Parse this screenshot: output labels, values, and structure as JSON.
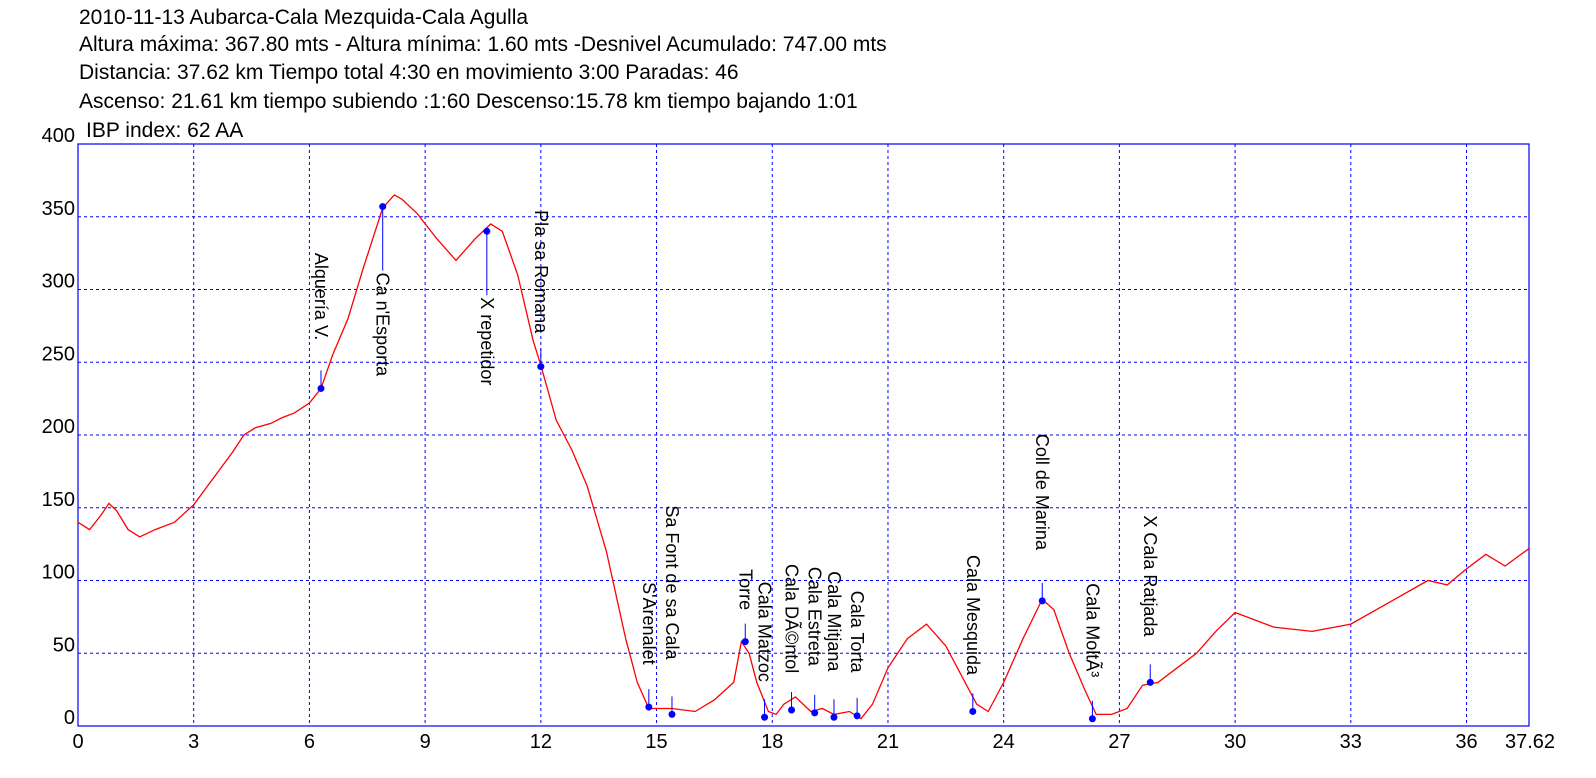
{
  "header": {
    "line1": "2010-11-13 Aubarca-Cala Mezquida-Cala Agulla",
    "line2": "Altura máxima: 367.80 mts - Altura mínima: 1.60 mts -Desnivel Acumulado: 747.00 mts",
    "line3": "Distancia: 37.62 km  Tiempo total 4:30  en movimiento 3:00 Paradas: 46",
    "line4": "Ascenso: 21.61 km  tiempo subiendo :1:60  Descenso:15.78 km tiempo bajando 1:01",
    "line5": "IBP index: 62 AA"
  },
  "chart_data": {
    "type": "line",
    "xlim": [
      0,
      37.62
    ],
    "ylim": [
      0,
      400
    ],
    "x_ticks": [
      0,
      3,
      6,
      9,
      12,
      15,
      18,
      21,
      24,
      27,
      30,
      33,
      36
    ],
    "x_end_label": "37.62",
    "y_ticks": [
      0,
      50,
      100,
      150,
      200,
      250,
      300,
      350,
      400
    ],
    "grid": true,
    "colors": {
      "line": "#ff0000",
      "frame": "#0000ff",
      "grid": "#0000ff",
      "marker": "#0000ff"
    },
    "series": [
      {
        "x": [
          0,
          0.3,
          0.6,
          0.8,
          1.0,
          1.3,
          1.6,
          2.0,
          2.5,
          3.0,
          3.5,
          4.0,
          4.3,
          4.6,
          5.0,
          5.3,
          5.6,
          6.0,
          6.3,
          6.6,
          7.0,
          7.4,
          7.9,
          8.2,
          8.4,
          8.8,
          9.3,
          9.8,
          10.3,
          10.7,
          11.0,
          11.4,
          11.8,
          12.0,
          12.4,
          12.8,
          13.2,
          13.7,
          14.2,
          14.5,
          14.8,
          15.0,
          15.4,
          16.0,
          16.5,
          17.0,
          17.2,
          17.4,
          17.6,
          17.9,
          18.1,
          18.3,
          18.6,
          19.0,
          19.3,
          19.6,
          20.0,
          20.3,
          20.6,
          21.0,
          21.5,
          22.0,
          22.5,
          23.0,
          23.3,
          23.6,
          24.0,
          24.5,
          25.0,
          25.3,
          25.7,
          26.1,
          26.4,
          26.8,
          27.2,
          27.6,
          28.0,
          28.5,
          29.0,
          29.5,
          30.0,
          31.0,
          32.0,
          33.0,
          34.0,
          35.0,
          35.5,
          36.0,
          36.5,
          37.0,
          37.62
        ],
        "y": [
          140,
          135,
          145,
          153,
          148,
          135,
          130,
          135,
          140,
          152,
          170,
          188,
          200,
          205,
          208,
          212,
          215,
          222,
          232,
          255,
          280,
          315,
          356,
          365,
          362,
          352,
          335,
          320,
          335,
          345,
          340,
          310,
          265,
          248,
          210,
          190,
          165,
          120,
          60,
          30,
          12,
          12,
          12,
          10,
          18,
          30,
          58,
          50,
          30,
          10,
          8,
          15,
          20,
          10,
          12,
          8,
          10,
          5,
          15,
          40,
          60,
          70,
          55,
          30,
          15,
          10,
          30,
          60,
          87,
          80,
          50,
          25,
          8,
          8,
          12,
          28,
          30,
          40,
          50,
          65,
          78,
          68,
          65,
          70,
          85,
          100,
          97,
          108,
          118,
          110,
          122
        ]
      }
    ],
    "waypoints": [
      {
        "label": "Alquería V.",
        "x": 6.3,
        "y": 232
      },
      {
        "label": "Ca n'Esporta",
        "x": 7.9,
        "y": 357
      },
      {
        "label": "X repetidor",
        "x": 10.6,
        "y": 340
      },
      {
        "label": "Pla sa Romana",
        "x": 12.0,
        "y": 247
      },
      {
        "label": "S'Arenalet",
        "x": 14.8,
        "y": 13
      },
      {
        "label": "Sa Font de sa Cala",
        "x": 15.4,
        "y": 8
      },
      {
        "label": "Torre",
        "x": 17.3,
        "y": 58
      },
      {
        "label": "Cala Matzoc",
        "x": 17.8,
        "y": 6
      },
      {
        "label": "Cala DÃ©ntol",
        "x": 18.5,
        "y": 11
      },
      {
        "label": "Cala Estreta",
        "x": 19.1,
        "y": 9
      },
      {
        "label": "Cala Mitjana",
        "x": 19.6,
        "y": 6
      },
      {
        "label": "Cala Torta",
        "x": 20.2,
        "y": 7
      },
      {
        "label": "Cala Mesquida",
        "x": 23.2,
        "y": 10
      },
      {
        "label": "Coll de Marina",
        "x": 25.0,
        "y": 86
      },
      {
        "label": "Cala MoltÃ³",
        "x": 26.3,
        "y": 5
      },
      {
        "label": "X Cala Ratjada",
        "x": 27.8,
        "y": 30
      }
    ]
  }
}
